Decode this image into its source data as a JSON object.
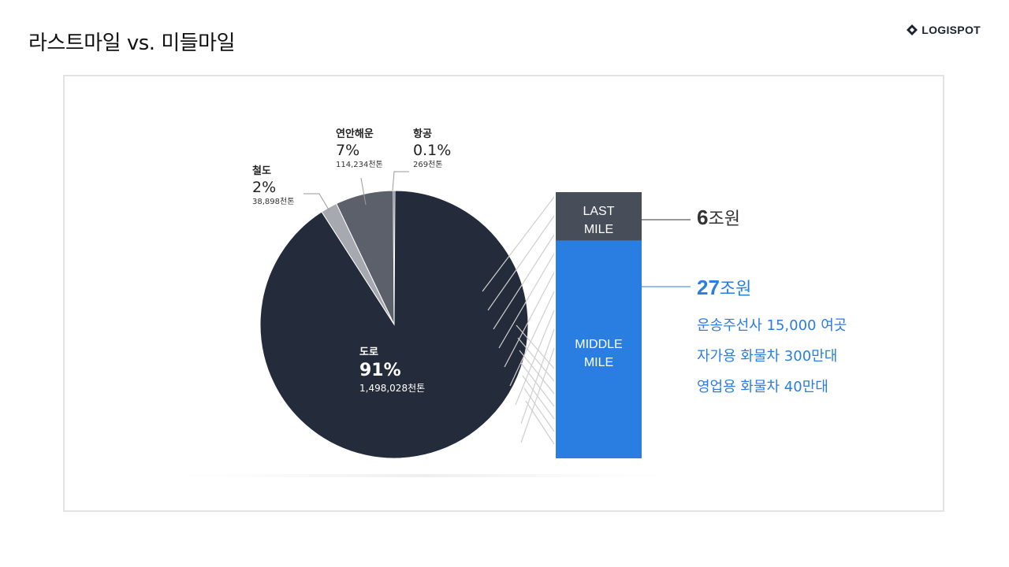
{
  "header": {
    "title": "라스트마일 vs. 미들마일",
    "logo_text": "LOGISPOT"
  },
  "colors": {
    "road": "#242b3a",
    "coastal": "#5b606b",
    "rail": "#a6a9af",
    "air": "#3f4552",
    "last_mile": "#474d59",
    "middle_mile": "#2a7de1",
    "accent_text": "#2a7de1"
  },
  "chart_data": [
    {
      "type": "pie",
      "slices": [
        {
          "name": "도로",
          "percent_label": "91%",
          "percent": 91,
          "volume_label": "1,498,028천톤"
        },
        {
          "name": "철도",
          "percent_label": "2%",
          "percent": 2,
          "volume_label": "38,898천톤"
        },
        {
          "name": "연안해운",
          "percent_label": "7%",
          "percent": 7,
          "volume_label": "114,234천톤"
        },
        {
          "name": "항공",
          "percent_label": "0.1%",
          "percent": 0.1,
          "volume_label": "269천톤"
        }
      ]
    },
    {
      "type": "bar",
      "stacked": true,
      "segments": [
        {
          "name": "LAST MILE",
          "lines": [
            "LAST",
            "MILE"
          ],
          "value": 6,
          "value_label": "6",
          "unit": "조원"
        },
        {
          "name": "MIDDLE MILE",
          "lines": [
            "MIDDLE",
            "MILE"
          ],
          "value": 27,
          "value_label": "27",
          "unit": "조원"
        }
      ]
    }
  ],
  "middle_mile_details": [
    "운송주선사 15,000 여곳",
    "자가용 화물차 300만대",
    "영업용 화물차 40만대"
  ]
}
